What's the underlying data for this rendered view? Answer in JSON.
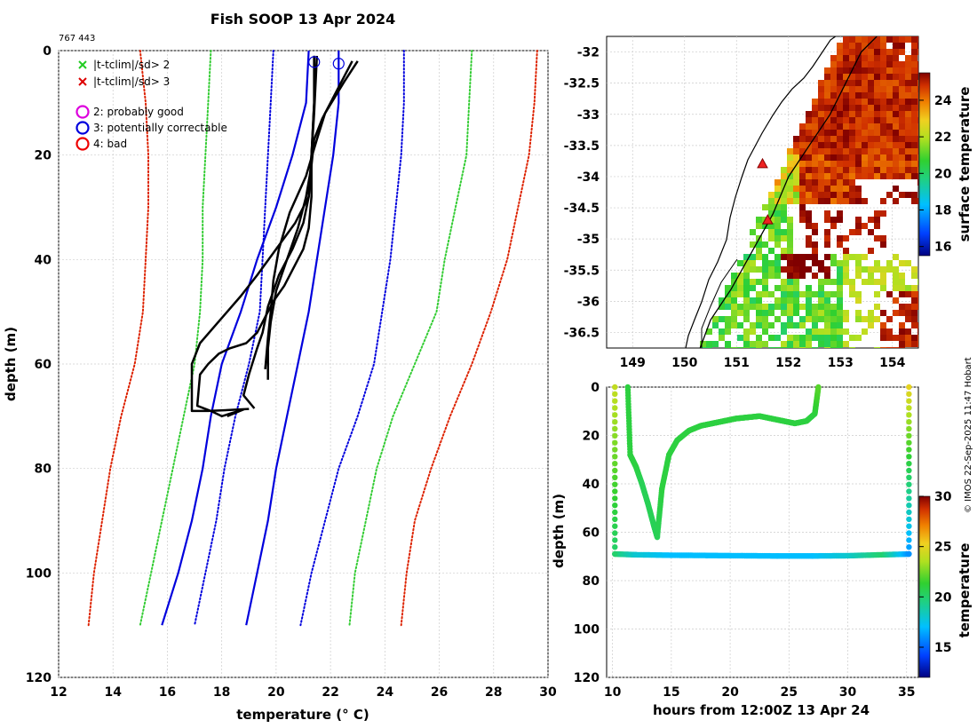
{
  "header": {
    "title": "Fish SOOP 13 Apr 2024",
    "id_label": "767 443",
    "credit": "© IMOS 22-Sep-2025 11:47 Hobart"
  },
  "legend": {
    "items": [
      {
        "label": "|t-tclim|/sd> 2",
        "symbol": "x",
        "color": "#22cc22"
      },
      {
        "label": "|t-tclim|/sd> 3",
        "symbol": "x",
        "color": "#dd0000"
      },
      {
        "label": "2: probably good",
        "symbol": "circle",
        "color": "#dd00dd"
      },
      {
        "label": "3: potentially correctable",
        "symbol": "circle",
        "color": "#0000dd"
      },
      {
        "label": "4: bad",
        "symbol": "circle",
        "color": "#ee0000"
      }
    ]
  },
  "chart_data": [
    {
      "type": "line",
      "title": "Fish SOOP 13 Apr 2024",
      "xlabel": "temperature (° C)",
      "ylabel": "depth (m)",
      "xlim": [
        12,
        30
      ],
      "ylim": [
        120,
        0
      ],
      "xticks": [
        12,
        14,
        16,
        18,
        20,
        22,
        24,
        26,
        28,
        30
      ],
      "yticks": [
        0,
        20,
        40,
        60,
        80,
        100,
        120
      ],
      "grid": true,
      "series": [
        {
          "name": "clim -3sd",
          "color": "#dd2200",
          "style": "dotted",
          "x": [
            15,
            15.2,
            15.3,
            15.3,
            15.2,
            15.1,
            14.8,
            14.3,
            13.9,
            13.6,
            13.3,
            13.1
          ],
          "y": [
            0,
            10,
            20,
            30,
            40,
            50,
            60,
            70,
            80,
            90,
            100,
            110
          ]
        },
        {
          "name": "clim -2sd",
          "color": "#33cc33",
          "style": "dotted",
          "x": [
            17.6,
            17.5,
            17.4,
            17.3,
            17.3,
            17.2,
            17.0,
            16.6,
            16.2,
            15.8,
            15.4,
            15.0
          ],
          "y": [
            0,
            10,
            20,
            30,
            40,
            50,
            60,
            70,
            80,
            90,
            100,
            110
          ]
        },
        {
          "name": "clim -1sd",
          "color": "#0000dd",
          "style": "dotted",
          "x": [
            19.9,
            19.8,
            19.7,
            19.6,
            19.5,
            19.4,
            19.0,
            18.5,
            18.1,
            17.8,
            17.4,
            17.0
          ],
          "y": [
            0,
            10,
            20,
            30,
            40,
            50,
            60,
            70,
            80,
            90,
            100,
            110
          ]
        },
        {
          "name": "clim mean -1",
          "color": "#0000dd",
          "style": "solid",
          "x": [
            21.2,
            21.1,
            20.6,
            20.0,
            19.3,
            18.7,
            18.0,
            17.6,
            17.3,
            16.9,
            16.4,
            15.8
          ],
          "y": [
            0,
            10,
            20,
            30,
            40,
            50,
            60,
            70,
            80,
            90,
            100,
            110
          ]
        },
        {
          "name": "clim mean +1",
          "color": "#0000dd",
          "style": "solid",
          "x": [
            22.3,
            22.3,
            22.1,
            21.8,
            21.5,
            21.2,
            20.8,
            20.4,
            20.0,
            19.7,
            19.3,
            18.9
          ],
          "y": [
            0,
            10,
            20,
            30,
            40,
            50,
            60,
            70,
            80,
            90,
            100,
            110
          ]
        },
        {
          "name": "clim +1sd",
          "color": "#0000dd",
          "style": "dotted",
          "x": [
            24.7,
            24.7,
            24.6,
            24.4,
            24.2,
            23.9,
            23.6,
            23.0,
            22.3,
            21.8,
            21.3,
            20.9
          ],
          "y": [
            0,
            10,
            20,
            30,
            40,
            50,
            60,
            70,
            80,
            90,
            100,
            110
          ]
        },
        {
          "name": "clim +2sd",
          "color": "#33cc33",
          "style": "dotted",
          "x": [
            27.2,
            27.1,
            27.0,
            26.6,
            26.2,
            25.9,
            25.1,
            24.3,
            23.7,
            23.3,
            22.9,
            22.7
          ],
          "y": [
            0,
            10,
            20,
            30,
            40,
            50,
            60,
            70,
            80,
            90,
            100,
            110
          ]
        },
        {
          "name": "clim +3sd",
          "color": "#dd2200",
          "style": "dotted",
          "x": [
            29.6,
            29.5,
            29.3,
            28.9,
            28.5,
            27.9,
            27.2,
            26.4,
            25.7,
            25.1,
            24.8,
            24.6
          ],
          "y": [
            0,
            10,
            20,
            30,
            40,
            50,
            60,
            70,
            80,
            90,
            100,
            110
          ]
        },
        {
          "name": "profile 1",
          "color": "#000000",
          "style": "solid",
          "width": 2.5,
          "x": [
            21.4,
            21.4,
            21.3,
            21.2,
            21.0,
            20.6,
            20.1,
            19.7,
            19.5,
            19.3,
            19.0,
            18.8,
            19.2
          ],
          "y": [
            1,
            10,
            20,
            28,
            33,
            38,
            43,
            49,
            54,
            57,
            62,
            66,
            68.5
          ]
        },
        {
          "name": "profile 2",
          "color": "#000000",
          "style": "solid",
          "width": 2.5,
          "x": [
            21.4,
            21.4,
            21.3,
            21.2,
            20.7,
            20.0,
            19.3,
            18.7,
            18.2,
            17.7,
            17.2,
            16.9,
            16.9,
            17.5,
            18.3,
            19.0
          ],
          "y": [
            1,
            10,
            20,
            28,
            33,
            38,
            43,
            47,
            50,
            53,
            56,
            60,
            69,
            69,
            68.8,
            68.6
          ]
        },
        {
          "name": "profile 3",
          "color": "#000000",
          "style": "solid",
          "width": 2.5,
          "x": [
            22.8,
            22.2,
            21.7,
            21.4,
            21.3,
            21.1,
            20.8,
            20.4,
            20.0,
            19.8,
            19.7,
            19.7
          ],
          "y": [
            2,
            8,
            13,
            17,
            22,
            28,
            34,
            40,
            46,
            52,
            57,
            63
          ]
        },
        {
          "name": "profile 4",
          "color": "#000000",
          "style": "solid",
          "width": 2.5,
          "x": [
            23.0,
            22.5,
            21.8,
            21.5,
            21.1,
            20.5,
            20.1,
            19.9,
            19.8,
            19.7,
            19.6
          ],
          "y": [
            2,
            6,
            12,
            17,
            24,
            31,
            38,
            44,
            50,
            55,
            61
          ]
        },
        {
          "name": "profile 5",
          "color": "#000000",
          "style": "solid",
          "width": 2.5,
          "x": [
            21.5,
            21.4,
            21.3,
            21.3,
            21.2,
            21.0,
            20.6,
            20.3,
            19.9,
            19.6,
            19.3,
            18.9,
            18.3,
            17.9,
            17.5,
            17.2,
            17.1,
            17.6,
            18.0,
            18.8,
            18.2
          ],
          "y": [
            1,
            12,
            20,
            28,
            34,
            38,
            42,
            45,
            48,
            51,
            54,
            56,
            57,
            58,
            60,
            62,
            68,
            69,
            70,
            68.7,
            70
          ]
        }
      ],
      "markers": [
        {
          "name": "qc-circle-1",
          "x": 21.4,
          "y": 1,
          "color": "#0000dd"
        },
        {
          "name": "qc-circle-2",
          "x": 22.3,
          "y": 1.3,
          "color": "#0000dd"
        }
      ]
    },
    {
      "type": "heatmap",
      "title": "surface temperature map",
      "xlim": [
        148.5,
        154.5
      ],
      "ylim": [
        -36.75,
        -31.75
      ],
      "xticks": [
        149,
        150,
        151,
        152,
        153,
        154
      ],
      "yticks": [
        -32,
        -32.5,
        -33,
        -33.5,
        -34,
        -34.5,
        -35,
        -35.5,
        -36,
        -36.5
      ],
      "xtick_labels": [
        "149",
        "150",
        "151",
        "152",
        "153",
        "154"
      ],
      "ytick_labels": [
        "-32",
        "-32.5",
        "-33",
        "-33.5",
        "-34",
        "-34.5",
        "-35",
        "-35.5",
        "-36",
        "-36.5"
      ],
      "colorbar": {
        "label": "surface temperature",
        "ticks": [
          16,
          18,
          20,
          22,
          24
        ],
        "range": [
          15.5,
          25.5
        ]
      },
      "track": {
        "lon": [
          150.3,
          150.5,
          150.9,
          151.3,
          151.7,
          152.0,
          152.4,
          152.8,
          153.1,
          153.4,
          153.7
        ],
        "lat": [
          -36.75,
          -36.3,
          -35.8,
          -35.2,
          -34.6,
          -34.0,
          -33.5,
          -33.0,
          -32.5,
          -32.0,
          -31.75
        ]
      },
      "triangles": [
        {
          "lon": 151.5,
          "lat": -33.8
        },
        {
          "lon": 151.6,
          "lat": -34.7
        }
      ]
    },
    {
      "type": "scatter",
      "xlabel": "hours from 12:00Z 13 Apr 24",
      "ylabel": "depth (m)",
      "xlim": [
        9.5,
        36
      ],
      "ylim": [
        120,
        0
      ],
      "xticks": [
        10,
        15,
        20,
        25,
        30,
        35
      ],
      "yticks": [
        0,
        20,
        40,
        60,
        80,
        100,
        120
      ],
      "grid": true,
      "colorbar": {
        "label": "temperature",
        "ticks": [
          15,
          20,
          25,
          30
        ],
        "range": [
          12,
          30
        ]
      },
      "series": [
        {
          "name": "bottom track",
          "x": [
            10.2,
            12,
            15,
            18,
            21,
            24,
            27,
            30,
            33,
            35.2
          ],
          "y": [
            69,
            69.3,
            69.5,
            69.6,
            69.7,
            69.8,
            69.8,
            69.7,
            69.3,
            69
          ],
          "t": [
            20,
            18,
            17,
            17,
            17,
            17,
            17,
            18,
            20,
            16
          ]
        },
        {
          "name": "near-surface track",
          "x": [
            11.3,
            11.5,
            12.0,
            12.5,
            13.0,
            13.5,
            13.8,
            14.2,
            14.8,
            15.5,
            16.5,
            17.5,
            18.5,
            19.5,
            20.5,
            21.5,
            22.5,
            23.5,
            24.5,
            25.5,
            26.5,
            27.2,
            27.5
          ],
          "y": [
            0,
            28,
            33,
            40,
            48,
            57,
            62,
            42,
            28,
            22,
            18,
            16,
            15,
            14,
            13,
            12.5,
            12,
            13,
            14,
            15,
            14,
            11,
            0
          ],
          "t": [
            21,
            21,
            21,
            20.5,
            20.5,
            20.5,
            20.5,
            21,
            21,
            21,
            21,
            21,
            21,
            21,
            21,
            21,
            21,
            21,
            21,
            21,
            21,
            21,
            22
          ]
        },
        {
          "name": "descent 1",
          "x": [
            10.2,
            10.2
          ],
          "y": [
            0,
            69
          ],
          "t": [
            24,
            20
          ]
        },
        {
          "name": "descent 2",
          "x": [
            35.2,
            35.2
          ],
          "y": [
            0,
            69
          ],
          "t": [
            25,
            16
          ]
        }
      ]
    }
  ]
}
